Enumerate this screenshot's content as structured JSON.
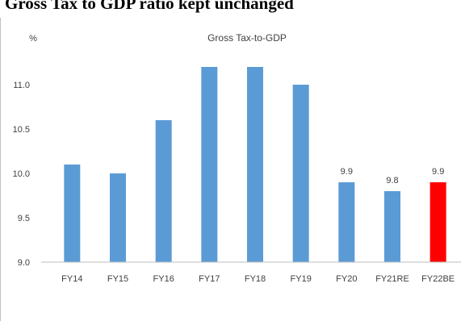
{
  "heading": "Gross Tax to GDP ratio kept unchanged",
  "chart_data": {
    "type": "bar",
    "title": "Gross Tax-to-GDP",
    "ylabel": "%",
    "xlabel": "",
    "categories": [
      "FY14",
      "FY15",
      "FY16",
      "FY17",
      "FY18",
      "FY19",
      "FY20",
      "FY21RE",
      "FY22BE"
    ],
    "values": [
      10.1,
      10.0,
      10.6,
      11.2,
      11.2,
      11.0,
      9.9,
      9.8,
      9.9
    ],
    "data_labels": [
      "",
      "",
      "",
      "",
      "",
      "",
      "9.9",
      "9.8",
      "9.9"
    ],
    "ylim": [
      9.0,
      11.3
    ],
    "yticks": [
      "9.0",
      "9.5",
      "10.0",
      "10.5",
      "11.0"
    ],
    "grid": false,
    "legend": "none",
    "colors": {
      "bar": "#5b9bd5",
      "highlight": "#ff0000",
      "axis": "#bfbfbf",
      "text": "#404040"
    },
    "highlight_category": "FY22BE"
  }
}
